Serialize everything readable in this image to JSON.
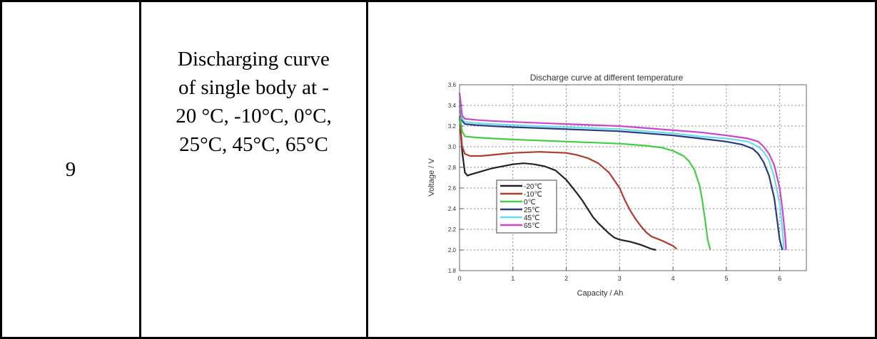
{
  "row": {
    "number": "9",
    "description_lines": [
      "Discharging curve",
      "of single body at -",
      "20 °C, -10°C, 0°C,",
      "25°C, 45°C, 65°C"
    ]
  },
  "chart_data": {
    "type": "line",
    "title": "Discharge curve  at different temperature",
    "xlabel": "Capacity / Ah",
    "ylabel": "Voltage / V",
    "xlim": [
      0,
      6.5
    ],
    "ylim": [
      1.8,
      3.6
    ],
    "xticks": [
      0,
      1,
      2,
      3,
      4,
      5,
      6
    ],
    "yticks": [
      1.8,
      2.0,
      2.2,
      2.4,
      2.6,
      2.8,
      3.0,
      3.2,
      3.4,
      3.6
    ],
    "grid": true,
    "legend_position": "bottom-left",
    "series": [
      {
        "name": "-20℃",
        "color": "#222222",
        "x": [
          0,
          0.05,
          0.1,
          0.15,
          0.2,
          0.4,
          0.6,
          0.8,
          1.0,
          1.2,
          1.4,
          1.6,
          1.8,
          2.0,
          2.2,
          2.3,
          2.4,
          2.5,
          2.6,
          2.7,
          2.8,
          2.9,
          3.0,
          3.2,
          3.4,
          3.6,
          3.68
        ],
        "y": [
          3.3,
          2.95,
          2.75,
          2.72,
          2.73,
          2.76,
          2.79,
          2.81,
          2.83,
          2.84,
          2.83,
          2.81,
          2.77,
          2.68,
          2.55,
          2.48,
          2.4,
          2.32,
          2.26,
          2.21,
          2.16,
          2.12,
          2.1,
          2.08,
          2.05,
          2.01,
          2.0
        ]
      },
      {
        "name": "-10℃",
        "color": "#b03a2e",
        "x": [
          0,
          0.05,
          0.1,
          0.2,
          0.4,
          0.6,
          0.8,
          1.0,
          1.5,
          2.0,
          2.2,
          2.4,
          2.6,
          2.8,
          3.0,
          3.1,
          3.2,
          3.3,
          3.4,
          3.5,
          3.6,
          3.8,
          4.0,
          4.07
        ],
        "y": [
          3.3,
          3.0,
          2.93,
          2.91,
          2.91,
          2.92,
          2.93,
          2.94,
          2.95,
          2.94,
          2.92,
          2.89,
          2.84,
          2.75,
          2.6,
          2.48,
          2.38,
          2.3,
          2.23,
          2.17,
          2.13,
          2.09,
          2.04,
          2.01
        ]
      },
      {
        "name": "0℃",
        "color": "#44cc44",
        "x": [
          0,
          0.05,
          0.1,
          0.3,
          0.6,
          1.0,
          1.5,
          2.0,
          2.5,
          3.0,
          3.5,
          3.8,
          4.0,
          4.2,
          4.3,
          4.4,
          4.5,
          4.55,
          4.6,
          4.65,
          4.7
        ],
        "y": [
          3.3,
          3.15,
          3.1,
          3.09,
          3.08,
          3.07,
          3.06,
          3.05,
          3.04,
          3.03,
          3.01,
          2.99,
          2.96,
          2.91,
          2.86,
          2.78,
          2.62,
          2.48,
          2.3,
          2.1,
          2.0
        ]
      },
      {
        "name": "25℃",
        "color": "#2b3a80",
        "x": [
          0,
          0.05,
          0.1,
          0.3,
          0.6,
          1.0,
          1.5,
          2.0,
          2.5,
          3.0,
          3.5,
          4.0,
          4.5,
          5.0,
          5.3,
          5.5,
          5.6,
          5.7,
          5.8,
          5.9,
          5.95,
          6.0,
          6.05
        ],
        "y": [
          3.4,
          3.25,
          3.22,
          3.21,
          3.2,
          3.19,
          3.18,
          3.17,
          3.16,
          3.15,
          3.13,
          3.11,
          3.08,
          3.05,
          3.02,
          2.98,
          2.93,
          2.85,
          2.72,
          2.5,
          2.3,
          2.1,
          2.0
        ]
      },
      {
        "name": "45℃",
        "color": "#66ddee",
        "x": [
          0,
          0.05,
          0.1,
          0.3,
          0.6,
          1.0,
          1.5,
          2.0,
          2.5,
          3.0,
          3.5,
          4.0,
          4.5,
          5.0,
          5.4,
          5.6,
          5.7,
          5.8,
          5.9,
          6.0,
          6.05,
          6.08
        ],
        "y": [
          3.45,
          3.27,
          3.24,
          3.23,
          3.22,
          3.21,
          3.2,
          3.19,
          3.18,
          3.17,
          3.15,
          3.13,
          3.1,
          3.08,
          3.05,
          3.0,
          2.95,
          2.87,
          2.7,
          2.45,
          2.2,
          2.0
        ]
      },
      {
        "name": "65℃",
        "color": "#cc44cc",
        "x": [
          0,
          0.05,
          0.1,
          0.3,
          0.6,
          1.0,
          1.5,
          2.0,
          2.5,
          3.0,
          3.5,
          4.0,
          4.5,
          5.0,
          5.4,
          5.6,
          5.7,
          5.8,
          5.9,
          6.0,
          6.05,
          6.1,
          6.12
        ],
        "y": [
          3.52,
          3.3,
          3.27,
          3.26,
          3.25,
          3.24,
          3.23,
          3.22,
          3.21,
          3.2,
          3.18,
          3.16,
          3.14,
          3.11,
          3.08,
          3.05,
          3.0,
          2.93,
          2.82,
          2.6,
          2.4,
          2.15,
          2.0
        ]
      }
    ]
  }
}
